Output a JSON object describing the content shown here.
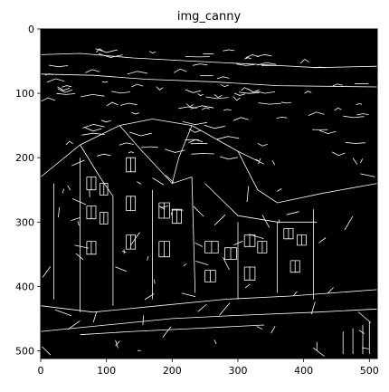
{
  "chart_data": {
    "type": "heatmap",
    "title": "img_canny",
    "xlabel": "",
    "ylabel": "",
    "xlim": [
      0,
      512
    ],
    "ylim": [
      512,
      0
    ],
    "xticks": [
      0,
      100,
      200,
      300,
      400,
      500
    ],
    "yticks": [
      0,
      100,
      200,
      300,
      400,
      500
    ],
    "xtick_labels": [
      "0",
      "100",
      "200",
      "300",
      "400",
      "500"
    ],
    "ytick_labels": [
      "0",
      "100",
      "200",
      "300",
      "400",
      "500"
    ],
    "grid": false,
    "colormap": "gray",
    "colors": {
      "background": "#000000",
      "edge": "#ffffff",
      "frame": "#000000"
    }
  }
}
